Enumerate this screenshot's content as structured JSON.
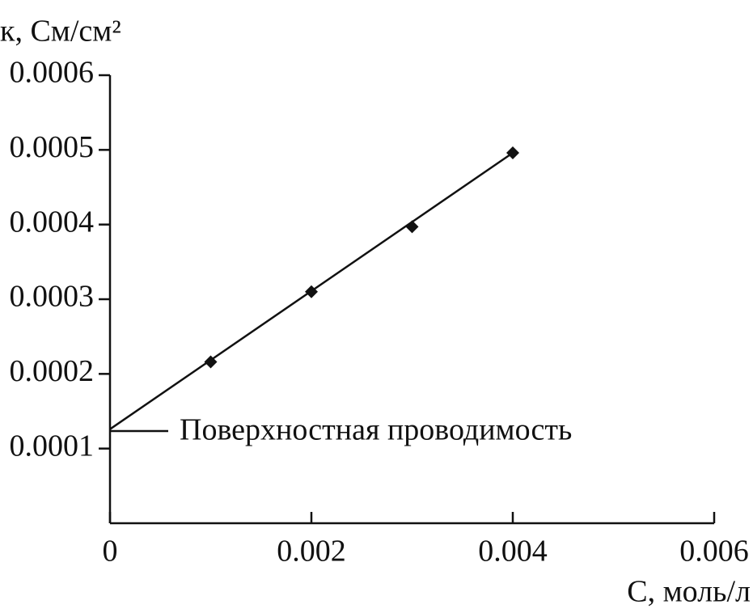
{
  "chart_data": {
    "type": "scatter",
    "y_label": "к, См/см²",
    "x_label": "C, моль/л",
    "annotation": "Поверхностная проводимость",
    "series": [
      {
        "name": null,
        "color": "#111111",
        "x": [
          0.001,
          0.002,
          0.003,
          0.004
        ],
        "values": [
          0.000216,
          0.00031,
          0.000397,
          0.000496
        ]
      }
    ],
    "fit_line": {
      "x": [
        0,
        0.004
      ],
      "values": [
        0.000126,
        0.000496
      ],
      "color": "#111111"
    },
    "xlim": [
      0,
      0.006
    ],
    "xticks": [
      0,
      0.002,
      0.004,
      0.006
    ],
    "ylim": [
      0,
      0.0006
    ],
    "yticks": [
      0.0001,
      0.0002,
      0.0003,
      0.0004,
      0.0005,
      0.0006
    ],
    "grid": false
  }
}
